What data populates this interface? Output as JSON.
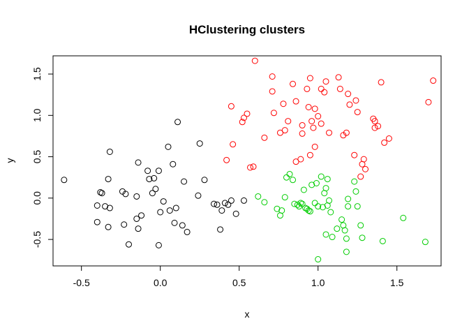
{
  "chart_data": {
    "type": "scatter",
    "title": "HClustering clusters",
    "xlabel": "x",
    "ylabel": "y",
    "xlim": [
      -0.68,
      1.78
    ],
    "ylim": [
      -0.82,
      1.72
    ],
    "xticks": [
      -0.5,
      0.0,
      0.5,
      1.0,
      1.5
    ],
    "xtick_labels": [
      "-0.5",
      "0.0",
      "0.5",
      "1.0",
      "1.5"
    ],
    "yticks": [
      -0.5,
      0.0,
      0.5,
      1.0,
      1.5
    ],
    "ytick_labels": [
      "-0.5",
      "0.0",
      "0.5",
      "1.0",
      "1.5"
    ],
    "grid": false,
    "legend": "none",
    "marker": "open-circle",
    "series": [
      {
        "color": "#000000",
        "points": [
          [
            -0.61,
            0.22
          ],
          [
            -0.38,
            0.07
          ],
          [
            -0.37,
            0.06
          ],
          [
            -0.4,
            -0.09
          ],
          [
            -0.4,
            -0.29
          ],
          [
            -0.35,
            -0.1
          ],
          [
            -0.33,
            -0.35
          ],
          [
            -0.32,
            -0.12
          ],
          [
            -0.33,
            0.23
          ],
          [
            -0.32,
            0.56
          ],
          [
            -0.24,
            0.08
          ],
          [
            -0.22,
            0.05
          ],
          [
            -0.23,
            -0.32
          ],
          [
            -0.2,
            -0.56
          ],
          [
            -0.15,
            0.02
          ],
          [
            -0.15,
            -0.25
          ],
          [
            -0.14,
            -0.37
          ],
          [
            -0.14,
            0.43
          ],
          [
            -0.12,
            -0.21
          ],
          [
            -0.08,
            0.33
          ],
          [
            -0.07,
            0.23
          ],
          [
            -0.05,
            0.06
          ],
          [
            -0.04,
            0.24
          ],
          [
            -0.03,
            0.11
          ],
          [
            -0.01,
            -0.57
          ],
          [
            -0.01,
            0.33
          ],
          [
            0.0,
            -0.17
          ],
          [
            0.02,
            -0.04
          ],
          [
            0.05,
            0.62
          ],
          [
            0.06,
            -0.15
          ],
          [
            0.08,
            0.41
          ],
          [
            0.09,
            -0.3
          ],
          [
            0.1,
            -0.12
          ],
          [
            0.11,
            0.92
          ],
          [
            0.14,
            -0.33
          ],
          [
            0.15,
            0.2
          ],
          [
            0.17,
            -0.41
          ],
          [
            0.24,
            0.03
          ],
          [
            0.25,
            0.66
          ],
          [
            0.28,
            0.22
          ],
          [
            0.34,
            -0.07
          ],
          [
            0.36,
            -0.08
          ],
          [
            0.38,
            -0.38
          ],
          [
            0.39,
            -0.15
          ],
          [
            0.41,
            -0.06
          ],
          [
            0.43,
            -0.08
          ],
          [
            0.45,
            -0.03
          ],
          [
            0.48,
            -0.19
          ],
          [
            0.53,
            -0.03
          ]
        ]
      },
      {
        "color": "#ff0000",
        "points": [
          [
            0.42,
            0.46
          ],
          [
            0.45,
            1.11
          ],
          [
            0.46,
            0.65
          ],
          [
            0.52,
            0.92
          ],
          [
            0.53,
            0.97
          ],
          [
            0.55,
            1.02
          ],
          [
            0.57,
            0.37
          ],
          [
            0.59,
            0.38
          ],
          [
            0.6,
            1.66
          ],
          [
            0.66,
            0.73
          ],
          [
            0.71,
            1.47
          ],
          [
            0.71,
            1.29
          ],
          [
            0.72,
            1.03
          ],
          [
            0.76,
            0.79
          ],
          [
            0.78,
            1.14
          ],
          [
            0.79,
            0.82
          ],
          [
            0.81,
            0.93
          ],
          [
            0.84,
            1.38
          ],
          [
            0.86,
            1.17
          ],
          [
            0.86,
            0.44
          ],
          [
            0.89,
            0.47
          ],
          [
            0.9,
            0.88
          ],
          [
            0.9,
            0.78
          ],
          [
            0.93,
            1.32
          ],
          [
            0.94,
            1.1
          ],
          [
            0.95,
            0.52
          ],
          [
            0.95,
            1.45
          ],
          [
            0.96,
            0.93
          ],
          [
            0.97,
            0.85
          ],
          [
            0.98,
            1.08
          ],
          [
            0.98,
            0.62
          ],
          [
            1.0,
            0.99
          ],
          [
            1.02,
            1.32
          ],
          [
            1.02,
            0.9
          ],
          [
            1.04,
            1.28
          ],
          [
            1.05,
            1.41
          ],
          [
            1.07,
            0.79
          ],
          [
            1.13,
            1.46
          ],
          [
            1.14,
            1.32
          ],
          [
            1.16,
            0.76
          ],
          [
            1.18,
            0.79
          ],
          [
            1.19,
            1.26
          ],
          [
            1.2,
            1.13
          ],
          [
            1.23,
            0.52
          ],
          [
            1.24,
            1.18
          ],
          [
            1.25,
            1.04
          ],
          [
            1.27,
            0.26
          ],
          [
            1.28,
            0.41
          ],
          [
            1.29,
            0.47
          ],
          [
            1.3,
            0.35
          ],
          [
            1.35,
            0.96
          ],
          [
            1.36,
            0.93
          ],
          [
            1.36,
            0.85
          ],
          [
            1.38,
            0.87
          ],
          [
            1.4,
            1.4
          ],
          [
            1.42,
            0.67
          ],
          [
            1.45,
            0.72
          ],
          [
            1.7,
            1.16
          ],
          [
            1.73,
            1.42
          ]
        ]
      },
      {
        "color": "#00cd00",
        "points": [
          [
            0.62,
            0.02
          ],
          [
            0.66,
            -0.05
          ],
          [
            0.74,
            -0.13
          ],
          [
            0.76,
            -0.21
          ],
          [
            0.77,
            -0.15
          ],
          [
            0.79,
            0.01
          ],
          [
            0.8,
            0.25
          ],
          [
            0.82,
            0.29
          ],
          [
            0.84,
            0.22
          ],
          [
            0.85,
            -0.07
          ],
          [
            0.87,
            -0.08
          ],
          [
            0.88,
            -0.1
          ],
          [
            0.89,
            -0.06
          ],
          [
            0.9,
            -0.07
          ],
          [
            0.91,
            0.1
          ],
          [
            0.92,
            -0.12
          ],
          [
            0.93,
            -0.13
          ],
          [
            0.94,
            -0.15
          ],
          [
            0.95,
            -0.16
          ],
          [
            0.96,
            0.16
          ],
          [
            0.98,
            -0.06
          ],
          [
            0.99,
            0.18
          ],
          [
            1.0,
            -0.74
          ],
          [
            1.0,
            -0.1
          ],
          [
            1.02,
            0.26
          ],
          [
            1.03,
            -0.11
          ],
          [
            1.04,
            0.06
          ],
          [
            1.05,
            0.12
          ],
          [
            1.05,
            -0.44
          ],
          [
            1.06,
            -0.09
          ],
          [
            1.06,
            0.23
          ],
          [
            1.07,
            -0.03
          ],
          [
            1.08,
            -0.17
          ],
          [
            1.09,
            -0.47
          ],
          [
            1.12,
            -0.37
          ],
          [
            1.15,
            -0.26
          ],
          [
            1.16,
            -0.33
          ],
          [
            1.17,
            -0.39
          ],
          [
            1.18,
            -0.65
          ],
          [
            1.18,
            -0.49
          ],
          [
            1.19,
            -0.01
          ],
          [
            1.19,
            -0.1
          ],
          [
            1.23,
            0.2
          ],
          [
            1.24,
            0.08
          ],
          [
            1.25,
            -0.1
          ],
          [
            1.27,
            -0.33
          ],
          [
            1.28,
            -0.48
          ],
          [
            1.41,
            -0.52
          ],
          [
            1.54,
            -0.24
          ],
          [
            1.68,
            -0.53
          ]
        ]
      }
    ]
  }
}
